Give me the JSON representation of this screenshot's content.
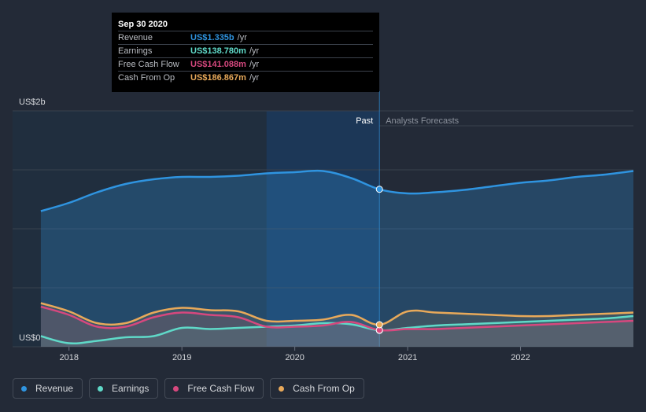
{
  "tooltip": {
    "date": "Sep 30 2020",
    "rows": [
      {
        "label": "Revenue",
        "value": "US$1.335b",
        "unit": "/yr",
        "color": "#2f94e0"
      },
      {
        "label": "Earnings",
        "value": "US$138.780m",
        "unit": "/yr",
        "color": "#5fd9c8"
      },
      {
        "label": "Free Cash Flow",
        "value": "US$141.088m",
        "unit": "/yr",
        "color": "#d6487e"
      },
      {
        "label": "Cash From Op",
        "value": "US$186.867m",
        "unit": "/yr",
        "color": "#e8a95a"
      }
    ]
  },
  "chart_data": {
    "type": "line",
    "title": "",
    "xlabel": "",
    "ylabel": "",
    "y_axis_labels": {
      "top": "US$2b",
      "bottom": "US$0"
    },
    "xlim": [
      2017.5,
      2023.0
    ],
    "ylim": [
      0,
      2.0
    ],
    "x_ticks": [
      {
        "value": 2018,
        "label": "2018"
      },
      {
        "value": 2019,
        "label": "2019"
      },
      {
        "value": 2020,
        "label": "2020"
      },
      {
        "value": 2021,
        "label": "2021"
      },
      {
        "value": 2022,
        "label": "2022"
      }
    ],
    "past_label": "Past",
    "forecast_label": "Analysts Forecasts",
    "divider_x": 2020.75,
    "highlight_range": [
      2019.75,
      2020.75
    ],
    "series": [
      {
        "name": "Revenue",
        "color": "#2f94e0",
        "x": [
          2017.75,
          2018.0,
          2018.25,
          2018.5,
          2018.75,
          2019.0,
          2019.25,
          2019.5,
          2019.75,
          2020.0,
          2020.25,
          2020.5,
          2020.75,
          2021.0,
          2021.25,
          2021.5,
          2021.75,
          2022.0,
          2022.25,
          2022.5,
          2022.75,
          2023.0
        ],
        "values": [
          1.15,
          1.22,
          1.31,
          1.38,
          1.42,
          1.44,
          1.44,
          1.45,
          1.47,
          1.48,
          1.49,
          1.43,
          1.335,
          1.3,
          1.31,
          1.33,
          1.36,
          1.39,
          1.41,
          1.44,
          1.46,
          1.49
        ]
      },
      {
        "name": "Earnings",
        "color": "#5fd9c8",
        "x": [
          2017.75,
          2018.0,
          2018.25,
          2018.5,
          2018.75,
          2019.0,
          2019.25,
          2019.5,
          2019.75,
          2020.0,
          2020.25,
          2020.5,
          2020.75,
          2021.0,
          2021.25,
          2021.5,
          2021.75,
          2022.0,
          2022.25,
          2022.5,
          2022.75,
          2023.0
        ],
        "values": [
          0.09,
          0.03,
          0.05,
          0.08,
          0.09,
          0.16,
          0.15,
          0.16,
          0.17,
          0.18,
          0.2,
          0.19,
          0.139,
          0.16,
          0.18,
          0.19,
          0.2,
          0.21,
          0.22,
          0.23,
          0.24,
          0.26
        ]
      },
      {
        "name": "Free Cash Flow",
        "color": "#d6487e",
        "x": [
          2017.75,
          2018.0,
          2018.25,
          2018.5,
          2018.75,
          2019.0,
          2019.25,
          2019.5,
          2019.75,
          2020.0,
          2020.25,
          2020.5,
          2020.75,
          2021.0,
          2021.25,
          2021.5,
          2021.75,
          2022.0,
          2022.25,
          2022.5,
          2022.75,
          2023.0
        ],
        "values": [
          0.34,
          0.27,
          0.17,
          0.17,
          0.25,
          0.29,
          0.27,
          0.25,
          0.17,
          0.17,
          0.18,
          0.21,
          0.141,
          0.15,
          0.15,
          0.16,
          0.17,
          0.18,
          0.19,
          0.2,
          0.21,
          0.22
        ]
      },
      {
        "name": "Cash From Op",
        "color": "#e8a95a",
        "x": [
          2017.75,
          2018.0,
          2018.25,
          2018.5,
          2018.75,
          2019.0,
          2019.25,
          2019.5,
          2019.75,
          2020.0,
          2020.25,
          2020.5,
          2020.75,
          2021.0,
          2021.25,
          2021.5,
          2021.75,
          2022.0,
          2022.25,
          2022.5,
          2022.75,
          2023.0
        ],
        "values": [
          0.37,
          0.3,
          0.2,
          0.2,
          0.29,
          0.33,
          0.31,
          0.3,
          0.22,
          0.22,
          0.23,
          0.27,
          0.187,
          0.3,
          0.29,
          0.28,
          0.27,
          0.26,
          0.26,
          0.27,
          0.28,
          0.29
        ]
      }
    ]
  }
}
